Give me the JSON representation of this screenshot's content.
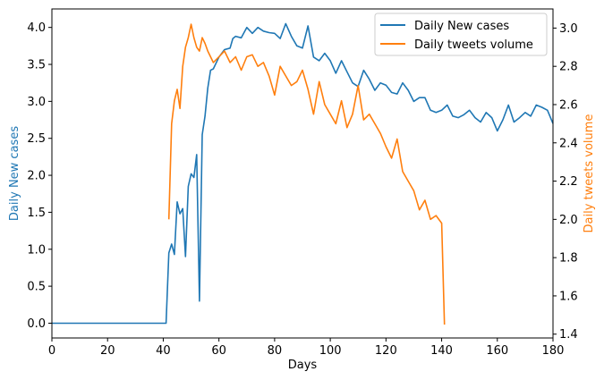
{
  "chart_data": {
    "type": "line",
    "title": "",
    "xlabel": "Days",
    "ylabel_left": "Daily New cases",
    "ylabel_right": "Daily tweets volume",
    "xlim": [
      0,
      180
    ],
    "ylim_left": [
      -0.2,
      4.25
    ],
    "ylim_right": [
      1.38,
      3.1
    ],
    "x_ticks": [
      0,
      20,
      40,
      60,
      80,
      100,
      120,
      140,
      160,
      180
    ],
    "x_tick_labels": [
      "0",
      "20",
      "40",
      "60",
      "80",
      "100",
      "120",
      "140",
      "160",
      "180"
    ],
    "y_left_ticks": [
      0.0,
      0.5,
      1.0,
      1.5,
      2.0,
      2.5,
      3.0,
      3.5,
      4.0
    ],
    "y_left_tick_labels": [
      "0.0",
      "0.5",
      "1.0",
      "1.5",
      "2.0",
      "2.5",
      "3.0",
      "3.5",
      "4.0"
    ],
    "y_right_ticks": [
      1.4,
      1.6,
      1.8,
      2.0,
      2.2,
      2.4,
      2.6,
      2.8,
      3.0
    ],
    "y_right_tick_labels": [
      "1.4",
      "1.6",
      "1.8",
      "2.0",
      "2.2",
      "2.4",
      "2.6",
      "2.8",
      "3.0"
    ],
    "grid": false,
    "legend_position": "top-right",
    "series": [
      {
        "name": "Daily New cases",
        "axis": "left",
        "color": "#1f77b4",
        "x": [
          0,
          41,
          42,
          43,
          44,
          45,
          46,
          47,
          48,
          49,
          50,
          51,
          52,
          53,
          54,
          55,
          56,
          57,
          58,
          60,
          62,
          64,
          65,
          66,
          68,
          70,
          72,
          74,
          76,
          78,
          80,
          82,
          84,
          86,
          88,
          90,
          92,
          94,
          96,
          98,
          100,
          102,
          104,
          106,
          108,
          110,
          112,
          114,
          116,
          118,
          120,
          122,
          124,
          126,
          128,
          130,
          132,
          134,
          136,
          138,
          140,
          142,
          144,
          146,
          148,
          150,
          152,
          154,
          156,
          158,
          160,
          162,
          164,
          166,
          168,
          170,
          172,
          174,
          176,
          178,
          180
        ],
        "y": [
          0.0,
          0.0,
          0.95,
          1.07,
          0.93,
          1.64,
          1.48,
          1.55,
          0.9,
          1.85,
          2.02,
          1.97,
          2.28,
          0.3,
          2.55,
          2.8,
          3.18,
          3.42,
          3.44,
          3.6,
          3.7,
          3.72,
          3.85,
          3.88,
          3.86,
          4.0,
          3.92,
          4.0,
          3.95,
          3.93,
          3.92,
          3.85,
          4.05,
          3.88,
          3.75,
          3.72,
          4.02,
          3.6,
          3.55,
          3.65,
          3.55,
          3.38,
          3.55,
          3.4,
          3.25,
          3.2,
          3.42,
          3.3,
          3.15,
          3.25,
          3.22,
          3.12,
          3.1,
          3.25,
          3.15,
          3.0,
          3.05,
          3.05,
          2.88,
          2.85,
          2.88,
          2.95,
          2.8,
          2.78,
          2.82,
          2.88,
          2.78,
          2.72,
          2.85,
          2.78,
          2.6,
          2.75,
          2.95,
          2.72,
          2.78,
          2.85,
          2.8,
          2.95,
          2.92,
          2.88,
          2.7
        ]
      },
      {
        "name": "Daily tweets volume",
        "axis": "right",
        "color": "#ff7f0e",
        "x": [
          42,
          43,
          44,
          45,
          46,
          47,
          48,
          49,
          50,
          51,
          52,
          53,
          54,
          55,
          56,
          57,
          58,
          60,
          62,
          64,
          66,
          68,
          70,
          72,
          74,
          76,
          78,
          80,
          82,
          84,
          86,
          88,
          90,
          92,
          94,
          96,
          98,
          100,
          102,
          104,
          106,
          108,
          110,
          112,
          114,
          116,
          118,
          120,
          122,
          124,
          126,
          128,
          130,
          132,
          134,
          136,
          138,
          140,
          141
        ],
        "y": [
          2.0,
          2.5,
          2.62,
          2.68,
          2.58,
          2.8,
          2.9,
          2.95,
          3.02,
          2.95,
          2.9,
          2.88,
          2.95,
          2.92,
          2.88,
          2.85,
          2.82,
          2.85,
          2.88,
          2.82,
          2.85,
          2.78,
          2.85,
          2.86,
          2.8,
          2.82,
          2.75,
          2.65,
          2.8,
          2.75,
          2.7,
          2.72,
          2.78,
          2.68,
          2.55,
          2.72,
          2.6,
          2.55,
          2.5,
          2.62,
          2.48,
          2.55,
          2.7,
          2.52,
          2.55,
          2.5,
          2.45,
          2.38,
          2.32,
          2.42,
          2.25,
          2.2,
          2.15,
          2.05,
          2.1,
          2.0,
          2.02,
          1.98,
          1.45
        ]
      }
    ]
  }
}
